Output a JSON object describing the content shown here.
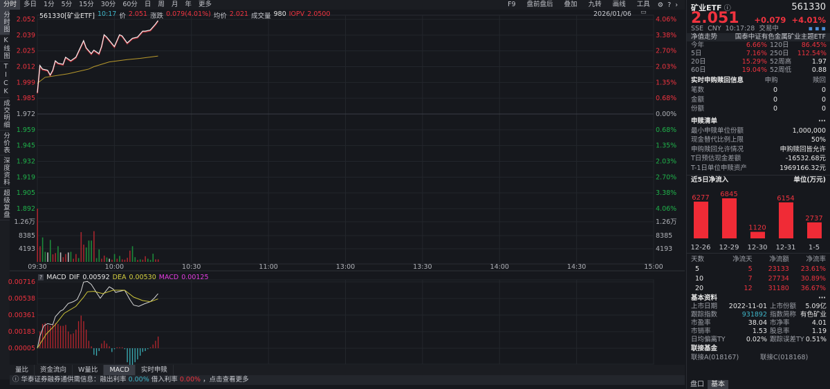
{
  "period_tabs": [
    "分时",
    "多日",
    "1分",
    "5分",
    "15分",
    "30分",
    "60分",
    "日",
    "周",
    "月",
    "年",
    "更多"
  ],
  "toolbar": [
    "F9",
    "盘前盘后",
    "叠加",
    "九转",
    "画线",
    "工具"
  ],
  "toolbar_icons": [
    "gear-icon",
    "help-icon",
    "chevron-right-icon"
  ],
  "sidebar": [
    "分时图",
    "K线图",
    "TICK",
    "成交明细",
    "分价表",
    "深度资料",
    "超级复盘"
  ],
  "info": {
    "code_name": "561330[矿业ETF]",
    "time": "10:17",
    "price_label": "价",
    "price": "2.051",
    "change_label": "涨跌",
    "change": "0.079(4.01%)",
    "avg_label": "均价",
    "avg": "2.021",
    "vol_label": "成交量",
    "vol": "980",
    "iopv_label": "IOPV",
    "iopv": "2.0500"
  },
  "date": "2026/01/06",
  "colors": {
    "up": "#f0333f",
    "down": "#1fb24a",
    "price_line": "#f2f2f2",
    "avg_line": "#b99a2c",
    "dif": "#d8d8d8",
    "dea": "#cfc63a",
    "macd_up": "#b8262e",
    "macd_down": "#3ab0b8"
  },
  "price_axis": {
    "left": [
      "2.052",
      "2.039",
      "2.025",
      "2.012",
      "1.999",
      "1.985",
      "1.972",
      "1.959",
      "1.945",
      "1.932",
      "1.919",
      "1.905",
      "1.892"
    ],
    "right": [
      "4.06%",
      "3.38%",
      "2.70%",
      "2.03%",
      "1.35%",
      "0.68%",
      "0.00%",
      "0.68%",
      "1.35%",
      "2.03%",
      "2.70%",
      "3.38%",
      "4.06%"
    ],
    "range": [
      1.892,
      2.052
    ],
    "prev_close": 1.972
  },
  "volume_axis": [
    "1.26万",
    "8385",
    "4193"
  ],
  "time_axis": [
    "09:30",
    "10:00",
    "10:30",
    "11:00",
    "13:00",
    "13:30",
    "14:00",
    "14:30",
    "15:00"
  ],
  "price_series": {
    "minutes": [
      0,
      1,
      2,
      4,
      5,
      6,
      7,
      8,
      10,
      11,
      13,
      15,
      18,
      19,
      21,
      22,
      24,
      25,
      26,
      27,
      30,
      32,
      33,
      35,
      37,
      39,
      41,
      42,
      44,
      46,
      47
    ],
    "values": [
      1.99,
      2.013,
      2.01,
      2.009,
      2.005,
      2.009,
      2.017,
      2.015,
      2.014,
      2.02,
      2.017,
      2.02,
      2.034,
      2.028,
      2.023,
      2.026,
      2.023,
      2.029,
      2.039,
      2.037,
      2.029,
      2.039,
      2.038,
      2.032,
      2.036,
      2.037,
      2.042,
      2.042,
      2.043,
      2.048,
      2.051
    ]
  },
  "avg_series": {
    "minutes": [
      0,
      3,
      12,
      20,
      22,
      28,
      35,
      40,
      47
    ],
    "values": [
      1.998,
      2.003,
      2.006,
      2.01,
      2.012,
      2.016,
      2.018,
      2.019,
      2.021
    ]
  },
  "volume": {
    "values": [
      17000,
      5000,
      7800,
      3200,
      3000,
      7000,
      2400,
      2800,
      5000,
      3000,
      1500,
      2500,
      3000,
      3200,
      1000,
      2500,
      1200,
      9500,
      5500,
      4600,
      6800,
      6800,
      9800,
      1200,
      4000,
      1000,
      2000,
      1400,
      1000,
      700,
      2500,
      1000,
      1900,
      800,
      700,
      1300,
      3600,
      5000,
      1500,
      600,
      800,
      700,
      1800,
      1000,
      600,
      2600,
      800,
      800
    ],
    "dirs": [
      "u",
      "u",
      "d",
      "d",
      "n",
      "d",
      "u",
      "u",
      "d",
      "n",
      "u",
      "u",
      "n",
      "d",
      "u",
      "u",
      "d",
      "u",
      "u",
      "d",
      "d",
      "d",
      "u",
      "d",
      "d",
      "u",
      "u",
      "d",
      "n",
      "u",
      "d",
      "u",
      "d",
      "u",
      "u",
      "u",
      "u",
      "d",
      "d",
      "u",
      "d",
      "u",
      "u",
      "d",
      "d",
      "d",
      "u",
      "u"
    ]
  },
  "macd": {
    "label": "MACD",
    "dif_label": "DIF",
    "dif": "0.00592",
    "dea_label": "DEA",
    "dea": "0.00530",
    "macd_label": "MACD",
    "macd": "0.00125",
    "axis": [
      "0.00716",
      "0.00538",
      "0.00361",
      "0.00183",
      "0.00005"
    ],
    "range": [
      5e-05,
      0.00716
    ],
    "dif_series": {
      "minutes": [
        0,
        1,
        2.5,
        4,
        6,
        7,
        9,
        10,
        12,
        14,
        15.5,
        17,
        18,
        19.5,
        21,
        23,
        24.5,
        25.5,
        28,
        29.5,
        30.5,
        32,
        34,
        36,
        37.5,
        39.5,
        41.5,
        44,
        45.5,
        47
      ],
      "values": [
        5e-05,
        0.00133,
        0.00245,
        0.00269,
        0.00257,
        0.00343,
        0.00405,
        0.00417,
        0.00484,
        0.00504,
        0.00528,
        0.00615,
        0.00714,
        0.00721,
        0.00689,
        0.00603,
        0.00541,
        0.00578,
        0.00664,
        0.0064,
        0.00603,
        0.00615,
        0.00627,
        0.00528,
        0.00467,
        0.00454,
        0.00479,
        0.00504,
        0.00541,
        0.0059
      ]
    },
    "dea_series": {
      "minutes": [
        0,
        3.5,
        7,
        10.5,
        15,
        18,
        19.5,
        22,
        25.5,
        29.5,
        34,
        37.5,
        41,
        44,
        47
      ],
      "values": [
        5e-05,
        0.00158,
        0.00257,
        0.0038,
        0.00454,
        0.00553,
        0.0061,
        0.00615,
        0.0059,
        0.00627,
        0.00627,
        0.00553,
        0.00516,
        0.00504,
        0.00533
      ]
    },
    "hist": [
      0,
      0.0018,
      0.0026,
      0.0027,
      0.0025,
      0.0024,
      0.0025,
      0.0027,
      0.0026,
      0.0024,
      0.0024,
      0.0025,
      0.0018,
      0.0015,
      0.0016,
      0.002,
      0.0029,
      0.0035,
      0.0029,
      0.002,
      0.0008,
      0.0002,
      -0.0007,
      -0.0008,
      -0.0003,
      0.0005,
      0.0008,
      0.0005,
      0.0002,
      -0.0004,
      -0.0001,
      0.0001,
      0.0001,
      0.0001,
      -0.0001,
      -0.0015,
      -0.0018,
      -0.0018,
      -0.0015,
      -0.0012,
      -0.0008,
      -0.0004,
      -0.0003,
      -0.0001,
      0.0001,
      0.0004,
      0.0008,
      0.00125
    ]
  },
  "bottom_tabs": [
    "量比",
    "资金流向",
    "W量比",
    "MACD",
    "实时申赎"
  ],
  "notice": {
    "text1": "华泰证券融券通供需信息：融出利率",
    "rate1": "0.00%",
    "text2": "借入利率",
    "rate2": "0.00%",
    "text3": "，点击查看更多"
  },
  "right": {
    "name": "矿业ETF",
    "code": "561330",
    "price": "2.051",
    "change": "+0.079",
    "pct": "+4.01%",
    "meta": "SSE  CNY  10:17:28  交易中",
    "nav_label": "净值走势",
    "fund_full": "国泰中证有色金属矿业主题ETF",
    "perf": [
      [
        "今年",
        "6.66%",
        "120日",
        "86.45%"
      ],
      [
        "5日",
        "7.16%",
        "250日",
        "112.54%"
      ],
      [
        "20日",
        "15.29%",
        "52周高",
        "1.97"
      ],
      [
        "60日",
        "19.04%",
        "52周低",
        "0.88"
      ]
    ],
    "sr_title": "实时申购赎回信息",
    "sr_cols": [
      "申购",
      "赎回"
    ],
    "sr_rows": [
      [
        "笔数",
        "0",
        "0"
      ],
      [
        "金额",
        "0",
        "0"
      ],
      [
        "份额",
        "0",
        "0"
      ]
    ],
    "list_title": "申赎清单",
    "more": "···",
    "list_rows": [
      [
        "最小申赎单位份额",
        "1,000,000"
      ],
      [
        "现金替代比例上限",
        "50%"
      ],
      [
        "申购赎回允许情况",
        "申购赎回皆允许"
      ],
      [
        "T日预估现金差额",
        "-16532.68元"
      ],
      [
        "T-1日单位申赎资产",
        "1969166.32元"
      ]
    ],
    "flow_title": "近5日净流入",
    "flow_unit": "单位(万元)",
    "flow_chart": {
      "type": "bar",
      "categories": [
        "12-26",
        "12-29",
        "12-30",
        "12-31",
        "1-5"
      ],
      "values": [
        6277,
        6845,
        1120,
        6154,
        2737
      ]
    },
    "flow_table": {
      "headers": [
        "天数",
        "净流天",
        "净流额",
        "净流率"
      ],
      "rows": [
        [
          "5",
          "5",
          "23133",
          "23.61%"
        ],
        [
          "10",
          "7",
          "27734",
          "30.89%"
        ],
        [
          "20",
          "12",
          "31180",
          "36.67%"
        ]
      ]
    },
    "basic_title": "基本资料",
    "basic_rows": [
      [
        "上市日期",
        "2022-11-01",
        "上市份额",
        "5.09亿"
      ],
      [
        "跟踪指数",
        "931892",
        "指数简称",
        "有色矿业"
      ],
      [
        "市盈率",
        "38.04",
        "市净率",
        "4.01"
      ],
      [
        "市销率",
        "1.53",
        "股息率",
        "1.19"
      ],
      [
        "日均偏离TY",
        "0.02%",
        "跟踪误差TY",
        "0.51%"
      ]
    ],
    "link_title": "联接基金",
    "links": [
      "联接A(018167)",
      "联接C(018168)"
    ],
    "tabs": [
      "盘口",
      "基本"
    ]
  }
}
